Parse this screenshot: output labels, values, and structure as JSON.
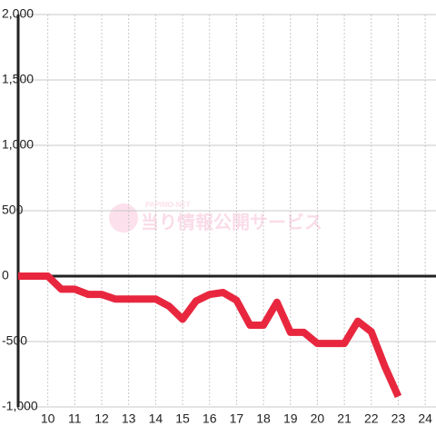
{
  "chart_data": {
    "type": "line",
    "watermark": {
      "logo": "PAPIMO-NET",
      "text": "当り情報公開サービス"
    },
    "x": [
      8.9,
      10,
      10.5,
      11,
      11.5,
      12,
      12.5,
      13,
      13.5,
      14,
      14.5,
      15,
      15.5,
      16,
      16.5,
      17,
      17.5,
      18,
      18.5,
      19,
      19.5,
      20,
      20.5,
      21,
      21.5,
      22,
      22.5,
      23
    ],
    "series": [
      {
        "color": "#e8273f",
        "values": [
          0,
          0,
          -100,
          -100,
          -140,
          -140,
          -175,
          -175,
          -175,
          -175,
          -230,
          -330,
          -190,
          -140,
          -125,
          -185,
          -375,
          -375,
          -200,
          -430,
          -430,
          -515,
          -515,
          -515,
          -345,
          -425,
          -690,
          -920
        ]
      }
    ],
    "xlim": [
      8.9,
      24.4
    ],
    "xticks": [
      10,
      11,
      12,
      13,
      14,
      15,
      16,
      17,
      18,
      19,
      20,
      21,
      22,
      23,
      24
    ],
    "ylim": [
      -1000,
      2000
    ],
    "yticks": [
      {
        "value": -1000,
        "label": "-1,000"
      },
      -500,
      0,
      500,
      {
        "value": 1000,
        "label": "1,000"
      },
      {
        "value": 1500,
        "label": "1,500"
      },
      {
        "value": 2000,
        "label": "2,000"
      }
    ],
    "grid": true
  }
}
